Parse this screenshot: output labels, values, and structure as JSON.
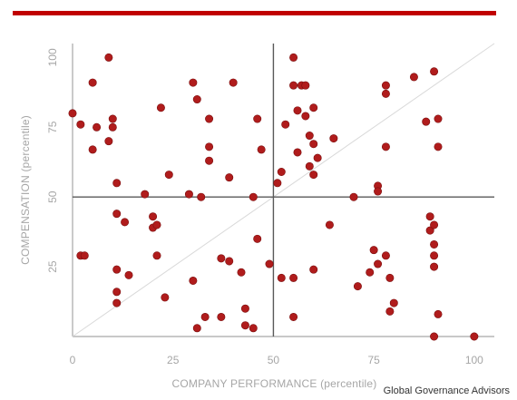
{
  "colors": {
    "accent": "#c00000",
    "point_fill": "#b01c1c",
    "point_stroke": "#7a0e0e",
    "axis": "#a6a6a6",
    "quadrant_line": "#595959",
    "diagonal": "#d9d9d9",
    "tick_text": "#a6a6a6"
  },
  "source": "Global Governance Advisors",
  "chart_data": {
    "type": "scatter",
    "xlabel": "COMPANY PERFORMANCE (percentile)",
    "ylabel": "COMPENSATION (percentile)",
    "xlim": [
      0,
      105
    ],
    "ylim": [
      0,
      105
    ],
    "x_ticks": [
      0,
      25,
      50,
      75,
      100
    ],
    "y_ticks": [
      25,
      50,
      75,
      100
    ],
    "grid": false,
    "reference_lines": {
      "vertical_x": 50,
      "horizontal_y": 50,
      "diagonal": "y = x"
    },
    "points": [
      [
        0,
        80
      ],
      [
        2,
        76
      ],
      [
        2,
        29
      ],
      [
        3,
        29
      ],
      [
        5,
        91
      ],
      [
        5,
        67
      ],
      [
        6,
        75
      ],
      [
        9,
        100
      ],
      [
        9,
        70
      ],
      [
        10,
        78
      ],
      [
        10,
        75
      ],
      [
        11,
        55
      ],
      [
        11,
        44
      ],
      [
        11,
        24
      ],
      [
        11,
        16
      ],
      [
        11,
        12
      ],
      [
        13,
        41
      ],
      [
        14,
        22
      ],
      [
        18,
        51
      ],
      [
        20,
        43
      ],
      [
        20,
        39
      ],
      [
        21,
        40
      ],
      [
        21,
        29
      ],
      [
        22,
        82
      ],
      [
        23,
        14
      ],
      [
        24,
        58
      ],
      [
        29,
        51
      ],
      [
        30,
        91
      ],
      [
        30,
        20
      ],
      [
        31,
        85
      ],
      [
        31,
        3
      ],
      [
        32,
        50
      ],
      [
        33,
        7
      ],
      [
        34,
        78
      ],
      [
        34,
        68
      ],
      [
        34,
        63
      ],
      [
        37,
        28
      ],
      [
        37,
        7
      ],
      [
        39,
        57
      ],
      [
        39,
        27
      ],
      [
        40,
        91
      ],
      [
        42,
        23
      ],
      [
        43,
        10
      ],
      [
        43,
        4
      ],
      [
        45,
        3
      ],
      [
        45,
        50
      ],
      [
        46,
        78
      ],
      [
        46,
        35
      ],
      [
        47,
        67
      ],
      [
        49,
        26
      ],
      [
        51,
        55
      ],
      [
        52,
        59
      ],
      [
        52,
        21
      ],
      [
        53,
        76
      ],
      [
        55,
        100
      ],
      [
        55,
        90
      ],
      [
        55,
        21
      ],
      [
        55,
        7
      ],
      [
        56,
        81
      ],
      [
        56,
        66
      ],
      [
        57,
        90
      ],
      [
        58,
        90
      ],
      [
        58,
        79
      ],
      [
        59,
        72
      ],
      [
        59,
        61
      ],
      [
        60,
        82
      ],
      [
        60,
        69
      ],
      [
        60,
        58
      ],
      [
        60,
        24
      ],
      [
        61,
        64
      ],
      [
        64,
        40
      ],
      [
        65,
        71
      ],
      [
        70,
        50
      ],
      [
        71,
        18
      ],
      [
        74,
        23
      ],
      [
        75,
        31
      ],
      [
        76,
        54
      ],
      [
        76,
        52
      ],
      [
        76,
        26
      ],
      [
        78,
        90
      ],
      [
        78,
        87
      ],
      [
        78,
        68
      ],
      [
        78,
        29
      ],
      [
        79,
        21
      ],
      [
        79,
        9
      ],
      [
        80,
        12
      ],
      [
        85,
        93
      ],
      [
        88,
        77
      ],
      [
        89,
        43
      ],
      [
        89,
        38
      ],
      [
        90,
        95
      ],
      [
        90,
        40
      ],
      [
        90,
        33
      ],
      [
        90,
        29
      ],
      [
        90,
        25
      ],
      [
        90,
        0
      ],
      [
        91,
        78
      ],
      [
        91,
        68
      ],
      [
        91,
        8
      ],
      [
        100,
        0
      ]
    ]
  }
}
